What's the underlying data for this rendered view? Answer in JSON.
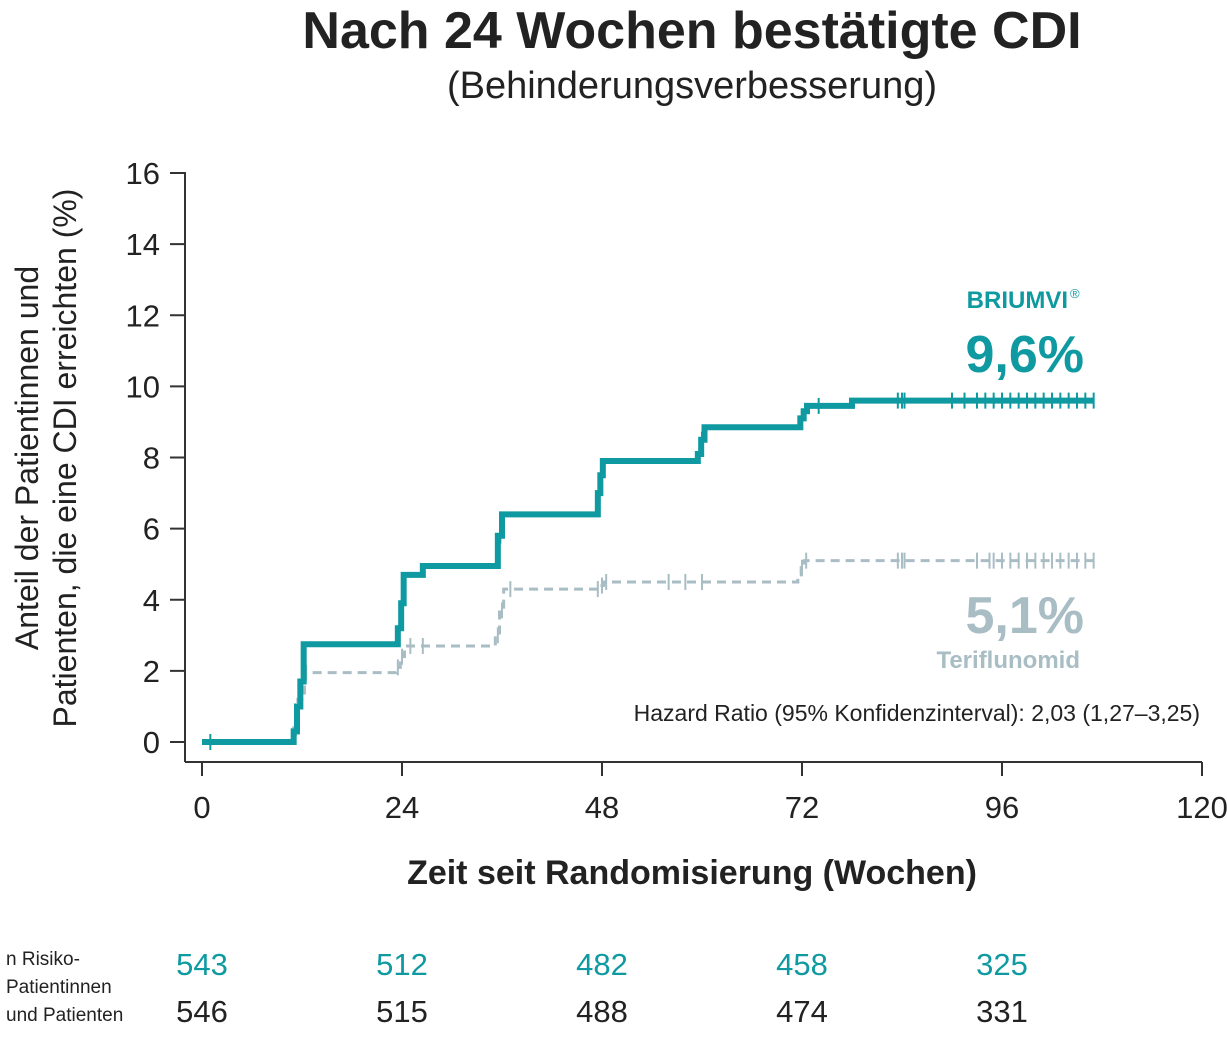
{
  "chart_data": {
    "type": "line",
    "title": "Nach 24 Wochen bestätigte CDI",
    "subtitle": "(Behinderungsverbesserung)",
    "ylabel_line1": "Anteil der Patientinnen und",
    "ylabel_line2": "Patienten, die eine CDI erreichten (%)",
    "xlabel": "Zeit seit Randomisierung (Wochen)",
    "xlim": [
      0,
      120
    ],
    "ylim": [
      0,
      16
    ],
    "xticks": [
      0,
      24,
      48,
      72,
      96,
      120
    ],
    "yticks": [
      0,
      2,
      4,
      6,
      8,
      10,
      12,
      14,
      16
    ],
    "colors": {
      "briumvi": "#0e9aa0",
      "teriflunomid": "#a9bdc4"
    },
    "series": [
      {
        "name": "BRIUMVI®",
        "color": "#0e9aa0",
        "style": "solid",
        "step_x": [
          0,
          11,
          11.4,
          11.8,
          12.2,
          23.5,
          23.9,
          24.2,
          26.5,
          35.5,
          36,
          47.5,
          47.8,
          48.1,
          59.5,
          59.9,
          60.3,
          71.8,
          72.2,
          72.6,
          78,
          107
        ],
        "step_y": [
          0,
          0.3,
          1.0,
          1.7,
          2.75,
          3.2,
          3.9,
          4.7,
          4.95,
          5.8,
          6.4,
          7.0,
          7.5,
          7.9,
          8.1,
          8.5,
          8.85,
          9.1,
          9.3,
          9.45,
          9.6,
          9.6
        ],
        "censor_x": [
          1,
          11.2,
          11.6,
          12,
          23.7,
          24,
          35.8,
          47.6,
          48,
          59.7,
          60,
          72,
          72.4,
          74,
          83.5,
          84,
          84.3,
          90,
          91.5,
          93,
          94,
          95,
          96,
          97,
          98,
          99,
          100,
          101,
          102,
          103,
          104,
          105,
          106,
          107
        ]
      },
      {
        "name": "Teriflunomid",
        "color": "#a9bdc4",
        "style": "dashed",
        "step_x": [
          0,
          11,
          11.5,
          12.3,
          23.3,
          23.8,
          24.3,
          35.2,
          35.7,
          36.2,
          47.7,
          48.2,
          71.5,
          71.9,
          72.3,
          107
        ],
        "step_y": [
          0,
          0.4,
          1.2,
          1.95,
          2.1,
          2.4,
          2.7,
          3.0,
          3.7,
          4.3,
          4.4,
          4.5,
          4.7,
          4.9,
          5.1,
          5.1
        ],
        "censor_x": [
          11.3,
          11.8,
          12.5,
          23.5,
          24,
          25,
          26.5,
          35.5,
          36,
          37,
          47.5,
          48,
          48.5,
          56,
          58,
          60,
          72,
          72.5,
          83.5,
          84,
          84.3,
          93,
          94.5,
          95,
          96,
          97,
          98,
          99,
          100,
          101,
          102,
          103,
          104,
          105,
          106,
          107
        ]
      }
    ],
    "annotations": {
      "briumvi_name": "BRIUMVI",
      "briumvi_reg": "®",
      "briumvi_value": "9,6%",
      "teriflunomid_value": "5,1%",
      "teriflunomid_name": "Teriflunomid",
      "hazard_ratio": "Hazard Ratio (95% Konfidenzinterval): 2,03 (1,27–3,25)"
    },
    "risk_table": {
      "label_lines": [
        "n Risiko-",
        "Patientinnen",
        "und Patienten"
      ],
      "weeks": [
        0,
        24,
        48,
        72,
        96
      ],
      "briumvi": [
        543,
        512,
        482,
        458,
        325
      ],
      "teriflunomid": [
        546,
        515,
        488,
        474,
        331
      ]
    }
  }
}
